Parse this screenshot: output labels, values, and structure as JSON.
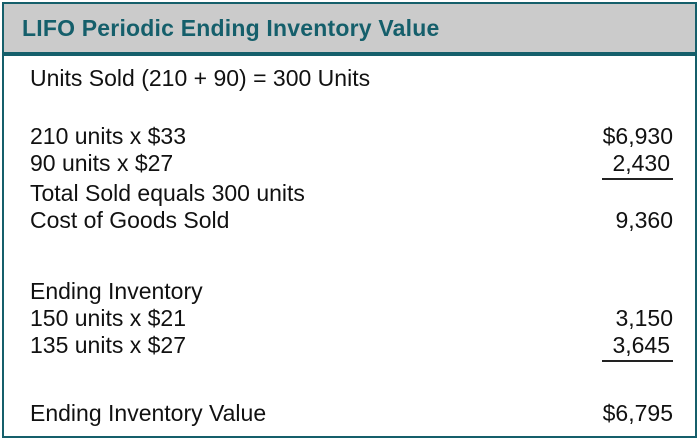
{
  "header": {
    "title": "LIFO Periodic Ending Inventory Value"
  },
  "colors": {
    "accent_teal": "#155F6B",
    "header_background": "#CBCBCB",
    "body_text": "#111111",
    "underline": "#222222"
  },
  "rows": [
    {
      "label": "Units Sold (210 + 90) = 300 Units",
      "value": "",
      "underline": false
    },
    {
      "label": "210 units x $33",
      "value": "$6,930",
      "underline": false
    },
    {
      "label": "90 units x $27",
      "value": "2,430",
      "underline": true
    },
    {
      "label": "Total Sold equals 300 units",
      "value": "",
      "underline": false
    },
    {
      "label": "Cost of Goods Sold",
      "value": "9,360",
      "underline": false
    },
    {
      "label": "Ending Inventory",
      "value": "",
      "underline": false
    },
    {
      "label": "150 units x $21",
      "value": "3,150",
      "underline": false
    },
    {
      "label": "135 units x $27",
      "value": "3,645",
      "underline": true
    },
    {
      "label": "Ending Inventory Value",
      "value": "$6,795",
      "underline": false
    }
  ]
}
